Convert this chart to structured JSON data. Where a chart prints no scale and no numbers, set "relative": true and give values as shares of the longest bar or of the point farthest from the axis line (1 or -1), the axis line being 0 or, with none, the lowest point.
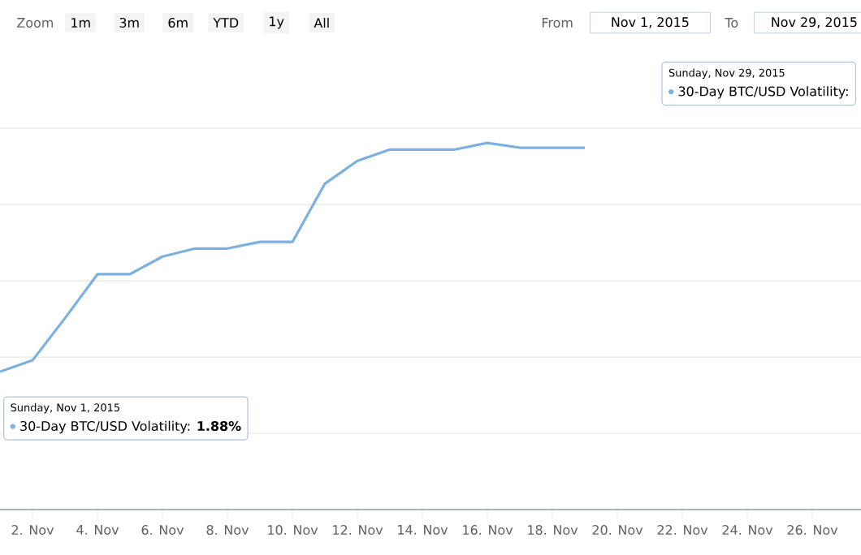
{
  "chart_data": {
    "type": "line",
    "relative": true,
    "grid": "y",
    "marker": "none",
    "line_style": "solid",
    "x": [
      "2015-11-01",
      "2015-11-02",
      "2015-11-03",
      "2015-11-04",
      "2015-11-05",
      "2015-11-06",
      "2015-11-07",
      "2015-11-08",
      "2015-11-09",
      "2015-11-10",
      "2015-11-11",
      "2015-11-12",
      "2015-11-13",
      "2015-11-14",
      "2015-11-15",
      "2015-11-16",
      "2015-11-17",
      "2015-11-18",
      "2015-11-19"
    ],
    "series": [
      {
        "color": "#7cb0e0",
        "values": [
          0.376,
          0.407,
          0.522,
          0.642,
          0.642,
          0.69,
          0.712,
          0.712,
          0.73,
          0.73,
          0.889,
          0.951,
          0.982,
          0.982,
          0.982,
          1,
          0.987,
          0.987,
          0.987
        ]
      }
    ],
    "xlim": [
      "2015-11-01",
      "2015-11-27T12:00"
    ],
    "xticks": [
      {
        "value": "2015-11-02",
        "label": "2. Nov"
      },
      {
        "value": "2015-11-04",
        "label": "4. Nov"
      },
      {
        "value": "2015-11-06",
        "label": "6. Nov"
      },
      {
        "value": "2015-11-08",
        "label": "8. Nov"
      },
      {
        "value": "2015-11-10",
        "label": "10. Nov"
      },
      {
        "value": "2015-11-12",
        "label": "12. Nov"
      },
      {
        "value": "2015-11-14",
        "label": "14. Nov"
      },
      {
        "value": "2015-11-16",
        "label": "16. Nov"
      },
      {
        "value": "2015-11-18",
        "label": "18. Nov"
      },
      {
        "value": "2015-11-20",
        "label": "20. Nov"
      },
      {
        "value": "2015-11-22",
        "label": "22. Nov"
      },
      {
        "value": "2015-11-24",
        "label": "24. Nov"
      },
      {
        "value": "2015-11-26",
        "label": "26. Nov"
      }
    ],
    "annotations": [
      "Zoom",
      "1m",
      "3m",
      "6m",
      "YTD",
      "1y",
      "All",
      "From",
      "Nov 1, 2015",
      "To",
      "Nov 29, 2015",
      "Sunday, Nov 1, 2015",
      "30-Day BTC/USD Volatility: **1.88%**",
      "Sunday, Nov 29, 2015",
      "30-Day BTC/USD Volatility:"
    ]
  }
}
